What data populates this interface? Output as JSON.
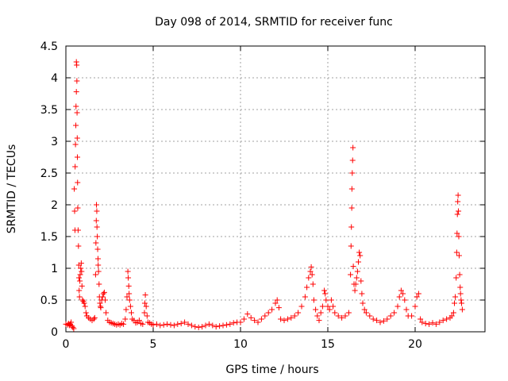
{
  "chart_data": {
    "type": "scatter",
    "title": "Day 098 of 2014, SRMTID for receiver func",
    "xlabel": "GPS time / hours",
    "ylabel": "SRMTID / TECUs",
    "xlim": [
      0,
      24
    ],
    "ylim": [
      0,
      4.5
    ],
    "xticks": [
      "0",
      "5",
      "10",
      "15",
      "20"
    ],
    "xtick_values": [
      0,
      5,
      10,
      15,
      20
    ],
    "yticks": [
      "0",
      "0.5",
      "1",
      "1.5",
      "2",
      "2.5",
      "3",
      "3.5",
      "4",
      "4.5"
    ],
    "ytick_values": [
      0,
      0.5,
      1,
      1.5,
      2,
      2.5,
      3,
      3.5,
      4,
      4.5
    ],
    "grid": true,
    "marker": "+",
    "series_color": "#ff0000",
    "series": [
      {
        "name": "SRMTID",
        "points": [
          [
            0.0,
            0.12
          ],
          [
            0.1,
            0.11
          ],
          [
            0.15,
            0.13
          ],
          [
            0.2,
            0.1
          ],
          [
            0.25,
            0.12
          ],
          [
            0.3,
            0.15
          ],
          [
            0.35,
            0.09
          ],
          [
            0.4,
            0.07
          ],
          [
            0.45,
            0.05
          ],
          [
            0.48,
            2.25
          ],
          [
            0.5,
            1.9
          ],
          [
            0.52,
            1.6
          ],
          [
            0.53,
            2.6
          ],
          [
            0.55,
            2.95
          ],
          [
            0.57,
            3.25
          ],
          [
            0.58,
            3.55
          ],
          [
            0.6,
            4.25
          ],
          [
            0.6,
            3.78
          ],
          [
            0.62,
            4.2
          ],
          [
            0.63,
            3.95
          ],
          [
            0.64,
            3.45
          ],
          [
            0.65,
            3.05
          ],
          [
            0.66,
            2.75
          ],
          [
            0.67,
            2.35
          ],
          [
            0.68,
            1.95
          ],
          [
            0.7,
            1.6
          ],
          [
            0.72,
            1.35
          ],
          [
            0.74,
            1.05
          ],
          [
            0.75,
            0.85
          ],
          [
            0.76,
            0.65
          ],
          [
            0.78,
            0.55
          ],
          [
            0.8,
            0.8
          ],
          [
            0.82,
            0.9
          ],
          [
            0.85,
            1.0
          ],
          [
            0.88,
            1.08
          ],
          [
            0.9,
            0.95
          ],
          [
            0.92,
            0.72
          ],
          [
            0.95,
            0.5
          ],
          [
            1.0,
            0.48
          ],
          [
            1.05,
            0.45
          ],
          [
            1.1,
            0.4
          ],
          [
            1.15,
            0.3
          ],
          [
            1.2,
            0.25
          ],
          [
            1.3,
            0.22
          ],
          [
            1.4,
            0.2
          ],
          [
            1.5,
            0.18
          ],
          [
            1.6,
            0.2
          ],
          [
            1.65,
            0.22
          ],
          [
            1.7,
            0.9
          ],
          [
            1.72,
            1.4
          ],
          [
            1.74,
            1.75
          ],
          [
            1.75,
            2.0
          ],
          [
            1.77,
            1.9
          ],
          [
            1.78,
            1.65
          ],
          [
            1.8,
            1.5
          ],
          [
            1.82,
            1.3
          ],
          [
            1.84,
            1.15
          ],
          [
            1.85,
            1.05
          ],
          [
            1.87,
            0.95
          ],
          [
            1.9,
            0.75
          ],
          [
            1.92,
            0.55
          ],
          [
            1.95,
            0.45
          ],
          [
            1.98,
            0.4
          ],
          [
            2.0,
            0.38
          ],
          [
            2.05,
            0.5
          ],
          [
            2.1,
            0.55
          ],
          [
            2.15,
            0.6
          ],
          [
            2.2,
            0.62
          ],
          [
            2.25,
            0.5
          ],
          [
            2.3,
            0.3
          ],
          [
            2.4,
            0.18
          ],
          [
            2.5,
            0.15
          ],
          [
            2.6,
            0.14
          ],
          [
            2.7,
            0.13
          ],
          [
            2.8,
            0.12
          ],
          [
            2.9,
            0.11
          ],
          [
            3.0,
            0.12
          ],
          [
            3.1,
            0.11
          ],
          [
            3.2,
            0.13
          ],
          [
            3.3,
            0.12
          ],
          [
            3.4,
            0.2
          ],
          [
            3.45,
            0.35
          ],
          [
            3.5,
            0.55
          ],
          [
            3.55,
            0.95
          ],
          [
            3.57,
            0.85
          ],
          [
            3.6,
            0.72
          ],
          [
            3.62,
            0.6
          ],
          [
            3.65,
            0.5
          ],
          [
            3.7,
            0.4
          ],
          [
            3.75,
            0.3
          ],
          [
            3.8,
            0.2
          ],
          [
            3.9,
            0.18
          ],
          [
            4.0,
            0.14
          ],
          [
            4.1,
            0.15
          ],
          [
            4.2,
            0.18
          ],
          [
            4.3,
            0.13
          ],
          [
            4.4,
            0.12
          ],
          [
            4.5,
            0.3
          ],
          [
            4.52,
            0.45
          ],
          [
            4.55,
            0.58
          ],
          [
            4.6,
            0.4
          ],
          [
            4.65,
            0.25
          ],
          [
            4.7,
            0.15
          ],
          [
            4.8,
            0.14
          ],
          [
            4.9,
            0.12
          ],
          [
            5.0,
            0.11
          ],
          [
            5.2,
            0.12
          ],
          [
            5.4,
            0.1
          ],
          [
            5.6,
            0.11
          ],
          [
            5.8,
            0.12
          ],
          [
            6.0,
            0.11
          ],
          [
            6.2,
            0.1
          ],
          [
            6.4,
            0.12
          ],
          [
            6.6,
            0.13
          ],
          [
            6.8,
            0.15
          ],
          [
            7.0,
            0.12
          ],
          [
            7.2,
            0.1
          ],
          [
            7.4,
            0.08
          ],
          [
            7.6,
            0.07
          ],
          [
            7.8,
            0.08
          ],
          [
            8.0,
            0.1
          ],
          [
            8.2,
            0.12
          ],
          [
            8.4,
            0.1
          ],
          [
            8.6,
            0.08
          ],
          [
            8.8,
            0.09
          ],
          [
            9.0,
            0.1
          ],
          [
            9.2,
            0.11
          ],
          [
            9.4,
            0.12
          ],
          [
            9.6,
            0.14
          ],
          [
            9.8,
            0.15
          ],
          [
            10.0,
            0.15
          ],
          [
            10.2,
            0.2
          ],
          [
            10.4,
            0.28
          ],
          [
            10.6,
            0.22
          ],
          [
            10.8,
            0.18
          ],
          [
            11.0,
            0.15
          ],
          [
            11.2,
            0.2
          ],
          [
            11.4,
            0.25
          ],
          [
            11.6,
            0.3
          ],
          [
            11.8,
            0.35
          ],
          [
            12.0,
            0.45
          ],
          [
            12.1,
            0.5
          ],
          [
            12.2,
            0.38
          ],
          [
            12.3,
            0.2
          ],
          [
            12.5,
            0.18
          ],
          [
            12.7,
            0.2
          ],
          [
            12.9,
            0.22
          ],
          [
            13.1,
            0.25
          ],
          [
            13.3,
            0.3
          ],
          [
            13.5,
            0.4
          ],
          [
            13.7,
            0.55
          ],
          [
            13.8,
            0.7
          ],
          [
            13.9,
            0.85
          ],
          [
            14.0,
            0.95
          ],
          [
            14.05,
            1.02
          ],
          [
            14.1,
            0.9
          ],
          [
            14.15,
            0.75
          ],
          [
            14.2,
            0.5
          ],
          [
            14.3,
            0.35
          ],
          [
            14.4,
            0.25
          ],
          [
            14.5,
            0.18
          ],
          [
            14.6,
            0.3
          ],
          [
            14.7,
            0.4
          ],
          [
            14.8,
            0.65
          ],
          [
            14.85,
            0.6
          ],
          [
            14.9,
            0.5
          ],
          [
            15.0,
            0.4
          ],
          [
            15.1,
            0.35
          ],
          [
            15.2,
            0.5
          ],
          [
            15.3,
            0.4
          ],
          [
            15.4,
            0.3
          ],
          [
            15.6,
            0.25
          ],
          [
            15.8,
            0.22
          ],
          [
            16.0,
            0.25
          ],
          [
            16.2,
            0.3
          ],
          [
            16.3,
            0.9
          ],
          [
            16.33,
            1.35
          ],
          [
            16.35,
            1.65
          ],
          [
            16.37,
            1.95
          ],
          [
            16.38,
            2.25
          ],
          [
            16.4,
            2.5
          ],
          [
            16.42,
            2.7
          ],
          [
            16.44,
            2.9
          ],
          [
            16.46,
            1.03
          ],
          [
            16.5,
            0.75
          ],
          [
            16.55,
            0.65
          ],
          [
            16.6,
            0.75
          ],
          [
            16.65,
            0.85
          ],
          [
            16.7,
            0.95
          ],
          [
            16.75,
            1.1
          ],
          [
            16.8,
            1.25
          ],
          [
            16.85,
            1.2
          ],
          [
            16.9,
            0.8
          ],
          [
            16.95,
            0.6
          ],
          [
            17.0,
            0.45
          ],
          [
            17.1,
            0.35
          ],
          [
            17.2,
            0.3
          ],
          [
            17.4,
            0.25
          ],
          [
            17.6,
            0.2
          ],
          [
            17.8,
            0.18
          ],
          [
            18.0,
            0.15
          ],
          [
            18.2,
            0.17
          ],
          [
            18.4,
            0.2
          ],
          [
            18.6,
            0.25
          ],
          [
            18.8,
            0.3
          ],
          [
            19.0,
            0.4
          ],
          [
            19.1,
            0.55
          ],
          [
            19.2,
            0.65
          ],
          [
            19.3,
            0.6
          ],
          [
            19.4,
            0.5
          ],
          [
            19.5,
            0.35
          ],
          [
            19.6,
            0.25
          ],
          [
            19.8,
            0.25
          ],
          [
            20.0,
            0.4
          ],
          [
            20.1,
            0.55
          ],
          [
            20.2,
            0.6
          ],
          [
            20.3,
            0.2
          ],
          [
            20.4,
            0.15
          ],
          [
            20.6,
            0.13
          ],
          [
            20.8,
            0.12
          ],
          [
            21.0,
            0.14
          ],
          [
            21.2,
            0.12
          ],
          [
            21.4,
            0.15
          ],
          [
            21.6,
            0.18
          ],
          [
            21.8,
            0.2
          ],
          [
            22.0,
            0.22
          ],
          [
            22.1,
            0.25
          ],
          [
            22.2,
            0.3
          ],
          [
            22.25,
            0.45
          ],
          [
            22.3,
            0.55
          ],
          [
            22.35,
            0.85
          ],
          [
            22.38,
            1.25
          ],
          [
            22.4,
            1.55
          ],
          [
            22.42,
            1.85
          ],
          [
            22.44,
            2.05
          ],
          [
            22.46,
            2.15
          ],
          [
            22.48,
            1.9
          ],
          [
            22.5,
            1.5
          ],
          [
            22.52,
            1.2
          ],
          [
            22.55,
            0.9
          ],
          [
            22.58,
            0.7
          ],
          [
            22.6,
            0.6
          ],
          [
            22.63,
            0.5
          ],
          [
            22.66,
            0.45
          ],
          [
            22.7,
            0.35
          ]
        ]
      }
    ]
  }
}
